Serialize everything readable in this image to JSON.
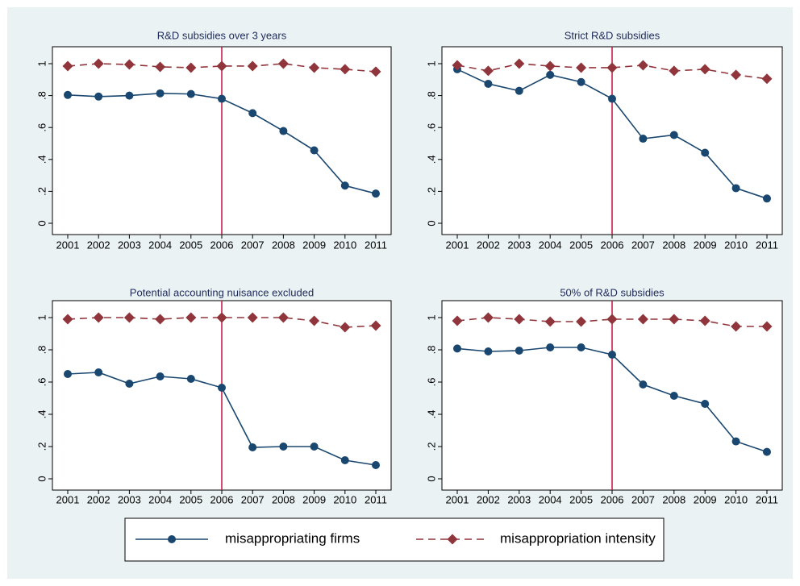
{
  "chart_data": [
    {
      "type": "line",
      "title": "R&D subsidies over 3 years",
      "x": [
        2001,
        2002,
        2003,
        2004,
        2005,
        2006,
        2007,
        2008,
        2009,
        2010,
        2011
      ],
      "series": [
        {
          "name": "misappropriating firms",
          "color": "#1a476f",
          "values": [
            0.804,
            0.794,
            0.8,
            0.814,
            0.81,
            0.78,
            0.69,
            0.578,
            0.457,
            0.236,
            0.186
          ]
        },
        {
          "name": "misappropriation intensity",
          "color": "#90353b",
          "values": [
            0.985,
            1.0,
            0.995,
            0.98,
            0.975,
            0.985,
            0.985,
            1.0,
            0.975,
            0.965,
            0.95
          ]
        }
      ],
      "vline": 2006,
      "vline_color": "#c4123e",
      "xlim": [
        2001,
        2011
      ],
      "xticks": [
        2001,
        2002,
        2003,
        2004,
        2005,
        2006,
        2007,
        2008,
        2009,
        2010,
        2011
      ],
      "ylim": [
        0,
        1
      ],
      "yticks": [
        0,
        {
          "value": 0.2,
          "label": ".2"
        },
        {
          "value": 0.4,
          "label": ".4"
        },
        {
          "value": 0.6,
          "label": ".6"
        },
        {
          "value": 0.8,
          "label": ".8"
        },
        1
      ]
    },
    {
      "type": "line",
      "title": "Strict R&D subsidies",
      "x": [
        2001,
        2002,
        2003,
        2004,
        2005,
        2006,
        2007,
        2008,
        2009,
        2010,
        2011
      ],
      "series": [
        {
          "color": "#1a476f",
          "values": [
            0.965,
            0.874,
            0.83,
            0.93,
            0.885,
            0.78,
            0.53,
            0.553,
            0.442,
            0.22,
            0.155
          ]
        },
        {
          "color": "#90353b",
          "values": [
            0.99,
            0.955,
            1.0,
            0.985,
            0.975,
            0.975,
            0.99,
            0.955,
            0.965,
            0.93,
            0.905
          ]
        }
      ],
      "vline": 2006,
      "vline_color": "#c4123e",
      "xlim": [
        2001,
        2011
      ],
      "xticks": [
        2001,
        2002,
        2003,
        2004,
        2005,
        2006,
        2007,
        2008,
        2009,
        2010,
        2011
      ],
      "ylim": [
        0,
        1
      ],
      "yticks": [
        0,
        {
          "value": 0.2,
          "label": ".2"
        },
        {
          "value": 0.4,
          "label": ".4"
        },
        {
          "value": 0.6,
          "label": ".6"
        },
        {
          "value": 0.8,
          "label": ".8"
        },
        1
      ]
    },
    {
      "type": "line",
      "title": "Potential accounting nuisance excluded",
      "x": [
        2001,
        2002,
        2003,
        2004,
        2005,
        2006,
        2007,
        2008,
        2009,
        2010,
        2011
      ],
      "series": [
        {
          "color": "#1a476f",
          "values": [
            0.65,
            0.66,
            0.59,
            0.635,
            0.62,
            0.565,
            0.195,
            0.2,
            0.2,
            0.115,
            0.085
          ]
        },
        {
          "color": "#90353b",
          "values": [
            0.99,
            1.0,
            1.0,
            0.99,
            1.0,
            1.0,
            1.0,
            1.0,
            0.98,
            0.94,
            0.95
          ]
        }
      ],
      "vline": 2006,
      "vline_color": "#c4123e",
      "xlim": [
        2001,
        2011
      ],
      "xticks": [
        2001,
        2002,
        2003,
        2004,
        2005,
        2006,
        2007,
        2008,
        2009,
        2010,
        2011
      ],
      "ylim": [
        0,
        1
      ],
      "yticks": [
        0,
        {
          "value": 0.2,
          "label": ".2"
        },
        {
          "value": 0.4,
          "label": ".4"
        },
        {
          "value": 0.6,
          "label": ".6"
        },
        {
          "value": 0.8,
          "label": ".8"
        },
        1
      ]
    },
    {
      "type": "line",
      "title": "50% of R&D subsidies",
      "x": [
        2001,
        2002,
        2003,
        2004,
        2005,
        2006,
        2007,
        2008,
        2009,
        2010,
        2011
      ],
      "series": [
        {
          "color": "#1a476f",
          "values": [
            0.808,
            0.79,
            0.795,
            0.815,
            0.815,
            0.77,
            0.585,
            0.515,
            0.465,
            0.232,
            0.167
          ]
        },
        {
          "color": "#90353b",
          "values": [
            0.98,
            1.0,
            0.99,
            0.975,
            0.975,
            0.99,
            0.99,
            0.99,
            0.98,
            0.945,
            0.945
          ]
        }
      ],
      "vline": 2006,
      "vline_color": "#c4123e",
      "xlim": [
        2001,
        2011
      ],
      "xticks": [
        2001,
        2002,
        2003,
        2004,
        2005,
        2006,
        2007,
        2008,
        2009,
        2010,
        2011
      ],
      "ylim": [
        0,
        1
      ],
      "yticks": [
        0,
        {
          "value": 0.2,
          "label": ".2"
        },
        {
          "value": 0.4,
          "label": ".4"
        },
        {
          "value": 0.6,
          "label": ".6"
        },
        {
          "value": 0.8,
          "label": ".8"
        },
        1
      ]
    }
  ]
}
